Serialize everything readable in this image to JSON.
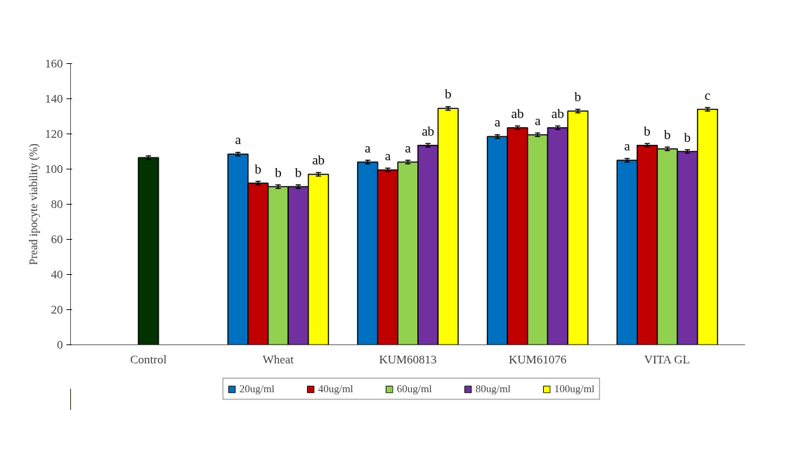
{
  "chart_data": {
    "type": "bar",
    "ylabel": "Pread ipocyte viability (%)",
    "categories": [
      "Control",
      "Wheat",
      "KUM60813",
      "KUM61076",
      "VITA GL"
    ],
    "ylim": [
      0,
      160
    ],
    "yticks": [
      0,
      20,
      40,
      60,
      80,
      100,
      120,
      140,
      160
    ],
    "grid": false,
    "legend": "bottom",
    "series": [
      {
        "color": "#003300",
        "values": [
          106.5,
          null,
          null,
          null,
          null
        ],
        "errors": [
          1,
          null,
          null,
          null,
          null
        ]
      },
      {
        "name": "20ug/ml",
        "color": "#0070c0",
        "values": [
          null,
          108.5,
          104,
          118.5,
          105
        ],
        "errors": [
          null,
          1,
          1,
          1,
          1
        ],
        "value_labels": [
          null,
          "a",
          "a",
          "a",
          "a"
        ]
      },
      {
        "name": "40ug/ml",
        "color": "#c00000",
        "values": [
          null,
          92,
          99.5,
          123.5,
          113.5
        ],
        "errors": [
          null,
          1,
          1,
          1,
          1
        ],
        "value_labels": [
          null,
          "b",
          "a",
          "ab",
          "b"
        ]
      },
      {
        "name": "60ug/ml",
        "color": "#92d050",
        "values": [
          null,
          90,
          104,
          119.5,
          111.5
        ],
        "errors": [
          null,
          1,
          1,
          1,
          1
        ],
        "value_labels": [
          null,
          "b",
          "a",
          "a",
          "b"
        ]
      },
      {
        "name": "80ug/ml",
        "color": "#7030a0",
        "values": [
          null,
          90,
          113.5,
          123.5,
          110
        ],
        "errors": [
          null,
          1,
          1,
          1,
          1
        ],
        "value_labels": [
          null,
          "b",
          "ab",
          "ab",
          "b"
        ]
      },
      {
        "name": "100ug/ml",
        "color": "#ffff00",
        "values": [
          null,
          97,
          134.5,
          133,
          134
        ],
        "errors": [
          null,
          1,
          1,
          1,
          1
        ],
        "value_labels": [
          null,
          "ab",
          "b",
          "b",
          "c"
        ]
      }
    ]
  }
}
